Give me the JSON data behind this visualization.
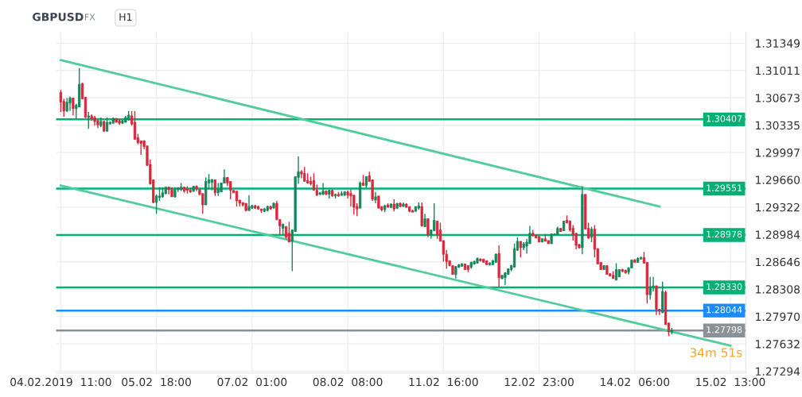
{
  "chart_data": {
    "type": "candlestick",
    "title": "GBPUSD",
    "annotations": [
      "FX",
      "H1",
      "34m 51s"
    ],
    "categories": [
      "04.02.2019  11:00",
      null,
      null,
      null,
      null,
      null,
      null,
      null,
      null,
      null,
      null,
      null,
      null,
      null,
      null,
      null,
      null,
      null,
      null,
      null,
      null,
      null,
      null,
      null,
      null,
      null,
      null,
      null,
      null,
      null,
      null,
      "05.02  18:00",
      null,
      null,
      null,
      null,
      null,
      null,
      null,
      null,
      null,
      null,
      null,
      null,
      null,
      null,
      null,
      null,
      null,
      null,
      null,
      null,
      null,
      null,
      null,
      null,
      null,
      null,
      null,
      null,
      null,
      null,
      "07.02  01:00",
      null,
      null,
      null,
      null,
      null,
      null,
      null,
      null,
      null,
      null,
      null,
      null,
      null,
      null,
      null,
      null,
      null,
      null,
      null,
      null,
      null,
      null,
      null,
      null,
      null,
      null,
      null,
      null,
      null,
      null,
      "08.02  08:00",
      null,
      null,
      null,
      null,
      null,
      null,
      null,
      null,
      null,
      null,
      null,
      null,
      null,
      null,
      null,
      null,
      null,
      null,
      null,
      null,
      null,
      null,
      null,
      null,
      null,
      null,
      null,
      null,
      null,
      null,
      "11.02  16:00",
      null,
      null,
      null,
      null,
      null,
      null,
      null,
      null,
      null,
      null,
      null,
      null,
      null,
      null,
      null,
      null,
      null,
      null,
      null,
      null,
      null,
      null,
      null,
      null,
      null,
      null,
      null,
      null,
      null,
      null,
      "12.02  23:00",
      null,
      null,
      null,
      null,
      null,
      null,
      null,
      null,
      null,
      null,
      null,
      null,
      null,
      null,
      null,
      null,
      null,
      null,
      null,
      null,
      null,
      null,
      null,
      null,
      null,
      null,
      null,
      null,
      null,
      null,
      "14.02  06:00",
      null,
      null,
      null,
      null,
      null,
      null,
      null,
      null,
      null,
      null,
      null,
      null,
      null,
      null,
      null,
      null,
      null,
      null,
      null,
      null,
      null,
      null,
      null,
      null,
      null,
      null,
      null,
      null,
      null,
      null,
      "15.02  13:00"
    ],
    "ohlc": [
      [
        1.3074,
        1.3077,
        1.305,
        1.3062
      ],
      [
        1.3063,
        1.3066,
        1.3044,
        1.3051
      ],
      [
        1.3051,
        1.3067,
        1.305,
        1.3062
      ],
      [
        1.3061,
        1.3069,
        1.3051,
        1.3067
      ],
      [
        1.3067,
        1.3067,
        1.3046,
        1.3054
      ],
      [
        1.3054,
        1.306,
        1.3041,
        1.3058
      ],
      [
        1.3056,
        1.3104,
        1.3056,
        1.3084
      ],
      [
        1.3085,
        1.3086,
        1.3066,
        1.3066
      ],
      [
        1.3068,
        1.3068,
        1.3043,
        1.3043
      ],
      [
        1.3043,
        1.305,
        1.3029,
        1.3045
      ],
      [
        1.3045,
        1.3047,
        1.3039,
        1.3042
      ],
      [
        1.3043,
        1.3045,
        1.3033,
        1.3038
      ],
      [
        1.3039,
        1.304,
        1.303,
        1.3034
      ],
      [
        1.3033,
        1.3043,
        1.3031,
        1.3038
      ],
      [
        1.3038,
        1.3039,
        1.3026,
        1.3026
      ],
      [
        1.3026,
        1.3043,
        1.3026,
        1.3037
      ],
      [
        1.3035,
        1.3038,
        1.3035,
        1.3037
      ],
      [
        1.3036,
        1.3043,
        1.3036,
        1.3042
      ],
      [
        1.3042,
        1.3042,
        1.3037,
        1.3037
      ],
      [
        1.3039,
        1.3041,
        1.3034,
        1.3036
      ],
      [
        1.3036,
        1.304,
        1.3035,
        1.3039
      ],
      [
        1.3037,
        1.3045,
        1.3037,
        1.3043
      ],
      [
        1.3041,
        1.3051,
        1.3039,
        1.3046
      ],
      [
        1.3045,
        1.3051,
        1.3033,
        1.3035
      ],
      [
        1.3037,
        1.3051,
        1.3016,
        1.3016
      ],
      [
        1.3018,
        1.3023,
        1.301,
        1.3012
      ],
      [
        1.3014,
        1.3014,
        1.2997,
        1.3011
      ],
      [
        1.3014,
        1.3015,
        1.3004,
        1.3007
      ],
      [
        1.3008,
        1.3008,
        1.2983,
        1.2984
      ],
      [
        1.2985,
        1.2991,
        1.296,
        1.2961
      ],
      [
        1.2966,
        1.2966,
        1.2937,
        1.2938
      ],
      [
        1.2938,
        1.2948,
        1.2924,
        1.2946
      ],
      [
        1.2944,
        1.2957,
        1.294,
        1.2946
      ],
      [
        1.2945,
        1.2957,
        1.2944,
        1.295
      ],
      [
        1.2949,
        1.2957,
        1.2948,
        1.2957
      ],
      [
        1.2957,
        1.2957,
        1.2948,
        1.2954
      ],
      [
        1.2954,
        1.2957,
        1.2945,
        1.2945
      ],
      [
        1.2945,
        1.2957,
        1.2944,
        1.2954
      ],
      [
        1.2954,
        1.2957,
        1.2951,
        1.2956
      ],
      [
        1.2954,
        1.2962,
        1.2952,
        1.2957
      ],
      [
        1.2957,
        1.2957,
        1.295,
        1.2952
      ],
      [
        1.2955,
        1.2958,
        1.2949,
        1.2953
      ],
      [
        1.2953,
        1.2956,
        1.295,
        1.2951
      ],
      [
        1.2952,
        1.2958,
        1.2951,
        1.2958
      ],
      [
        1.2958,
        1.2959,
        1.2952,
        1.2955
      ],
      [
        1.2954,
        1.2954,
        1.2947,
        1.2948
      ],
      [
        1.2949,
        1.2949,
        1.2924,
        1.2935
      ],
      [
        1.2935,
        1.2969,
        1.2935,
        1.2964
      ],
      [
        1.2962,
        1.2973,
        1.2954,
        1.2966
      ],
      [
        1.2963,
        1.2967,
        1.2953,
        1.2966
      ],
      [
        1.2966,
        1.2966,
        1.2946,
        1.295
      ],
      [
        1.295,
        1.2962,
        1.2946,
        1.2954
      ],
      [
        1.2951,
        1.2962,
        1.2951,
        1.2962
      ],
      [
        1.2962,
        1.2979,
        1.2962,
        1.2969
      ],
      [
        1.2969,
        1.2969,
        1.2958,
        1.2962
      ],
      [
        1.2964,
        1.2964,
        1.2942,
        1.2953
      ],
      [
        1.2953,
        1.2953,
        1.295,
        1.295
      ],
      [
        1.2952,
        1.2952,
        1.2933,
        1.294
      ],
      [
        1.2941,
        1.2941,
        1.2933,
        1.2937
      ],
      [
        1.2938,
        1.2938,
        1.2933,
        1.2935
      ],
      [
        1.2937,
        1.2937,
        1.2927,
        1.2928
      ],
      [
        1.2928,
        1.2947,
        1.2928,
        1.2933
      ],
      [
        1.2931,
        1.2935,
        1.293,
        1.2934
      ],
      [
        1.2934,
        1.2935,
        1.293,
        1.2931
      ],
      [
        1.2933,
        1.2934,
        1.2929,
        1.293
      ],
      [
        1.293,
        1.293,
        1.2925,
        1.2928
      ],
      [
        1.2927,
        1.2931,
        1.2926,
        1.293
      ],
      [
        1.2928,
        1.2934,
        1.2927,
        1.2933
      ],
      [
        1.2933,
        1.2934,
        1.2929,
        1.293
      ],
      [
        1.2931,
        1.2938,
        1.2931,
        1.2937
      ],
      [
        1.2937,
        1.294,
        1.2916,
        1.2917
      ],
      [
        1.2917,
        1.2917,
        1.2898,
        1.2909
      ],
      [
        1.2906,
        1.2912,
        1.2898,
        1.2911
      ],
      [
        1.2908,
        1.2909,
        1.2893,
        1.2895
      ],
      [
        1.29,
        1.2914,
        1.2889,
        1.2889
      ],
      [
        1.289,
        1.2904,
        1.2853,
        1.2904
      ],
      [
        1.2902,
        1.297,
        1.2902,
        1.297
      ],
      [
        1.2969,
        1.2995,
        1.2961,
        1.2976
      ],
      [
        1.2976,
        1.2978,
        1.2968,
        1.2973
      ],
      [
        1.2974,
        1.2982,
        1.2964,
        1.2964
      ],
      [
        1.2965,
        1.2974,
        1.2961,
        1.2962
      ],
      [
        1.2964,
        1.297,
        1.2959,
        1.2961
      ],
      [
        1.2965,
        1.2974,
        1.2953,
        1.2953
      ],
      [
        1.2953,
        1.296,
        1.2946,
        1.2947
      ],
      [
        1.2948,
        1.2951,
        1.2947,
        1.295
      ],
      [
        1.2948,
        1.2962,
        1.2947,
        1.2952
      ],
      [
        1.2952,
        1.2953,
        1.2947,
        1.2948
      ],
      [
        1.2948,
        1.2954,
        1.2943,
        1.2953
      ],
      [
        1.2953,
        1.2954,
        1.2945,
        1.2946
      ],
      [
        1.2946,
        1.2949,
        1.2943,
        1.2948
      ],
      [
        1.2948,
        1.2951,
        1.2945,
        1.2946
      ],
      [
        1.2947,
        1.2952,
        1.2946,
        1.2949
      ],
      [
        1.2947,
        1.2952,
        1.2946,
        1.2951
      ],
      [
        1.2951,
        1.2953,
        1.2943,
        1.2947
      ],
      [
        1.2949,
        1.2954,
        1.2933,
        1.2946
      ],
      [
        1.2947,
        1.2947,
        1.2923,
        1.2932
      ],
      [
        1.2933,
        1.2937,
        1.2921,
        1.293
      ],
      [
        1.2931,
        1.2964,
        1.2931,
        1.2962
      ],
      [
        1.2962,
        1.2972,
        1.2959,
        1.2959
      ],
      [
        1.2959,
        1.297,
        1.2956,
        1.297
      ],
      [
        1.2971,
        1.2976,
        1.2964,
        1.2964
      ],
      [
        1.2966,
        1.2966,
        1.294,
        1.2942
      ],
      [
        1.2941,
        1.2951,
        1.2937,
        1.2945
      ],
      [
        1.2946,
        1.2946,
        1.2931,
        1.2931
      ],
      [
        1.2933,
        1.2933,
        1.2927,
        1.2929
      ],
      [
        1.2929,
        1.2935,
        1.2926,
        1.2934
      ],
      [
        1.2935,
        1.2937,
        1.2932,
        1.2932
      ],
      [
        1.2932,
        1.2937,
        1.2931,
        1.2936
      ],
      [
        1.2936,
        1.2942,
        1.2927,
        1.293
      ],
      [
        1.2931,
        1.2937,
        1.293,
        1.2937
      ],
      [
        1.2937,
        1.2938,
        1.2932,
        1.2933
      ],
      [
        1.2933,
        1.2938,
        1.2933,
        1.2936
      ],
      [
        1.2936,
        1.2937,
        1.2932,
        1.2932
      ],
      [
        1.2933,
        1.2933,
        1.2926,
        1.2927
      ],
      [
        1.2928,
        1.2929,
        1.2926,
        1.2926
      ],
      [
        1.2927,
        1.2933,
        1.2927,
        1.2933
      ],
      [
        1.2931,
        1.2938,
        1.2929,
        1.2934
      ],
      [
        1.2933,
        1.2938,
        1.2908,
        1.2909
      ],
      [
        1.2908,
        1.2924,
        1.2908,
        1.2918
      ],
      [
        1.2918,
        1.2918,
        1.2895,
        1.2898
      ],
      [
        1.2898,
        1.2904,
        1.2893,
        1.2904
      ],
      [
        1.2903,
        1.2937,
        1.2903,
        1.2916
      ],
      [
        1.2915,
        1.2915,
        1.2893,
        1.2898
      ],
      [
        1.2904,
        1.2913,
        1.289,
        1.289
      ],
      [
        1.2891,
        1.2891,
        1.2865,
        1.2874
      ],
      [
        1.2874,
        1.2879,
        1.2856,
        1.2865
      ],
      [
        1.2866,
        1.2866,
        1.2859,
        1.286
      ],
      [
        1.286,
        1.286,
        1.2849,
        1.2849
      ],
      [
        1.2849,
        1.2859,
        1.2844,
        1.2859
      ],
      [
        1.2858,
        1.2862,
        1.2857,
        1.2861
      ],
      [
        1.2859,
        1.2863,
        1.2859,
        1.2862
      ],
      [
        1.2862,
        1.2862,
        1.2855,
        1.2855
      ],
      [
        1.286,
        1.286,
        1.2852,
        1.2855
      ],
      [
        1.2858,
        1.2865,
        1.2856,
        1.2864
      ],
      [
        1.2862,
        1.2866,
        1.2861,
        1.2865
      ],
      [
        1.2863,
        1.287,
        1.2863,
        1.2869
      ],
      [
        1.2868,
        1.2869,
        1.2865,
        1.2866
      ],
      [
        1.2868,
        1.2868,
        1.2864,
        1.2864
      ],
      [
        1.2866,
        1.2866,
        1.2861,
        1.2861
      ],
      [
        1.2861,
        1.2864,
        1.286,
        1.2863
      ],
      [
        1.2861,
        1.2867,
        1.2861,
        1.2866
      ],
      [
        1.2864,
        1.2875,
        1.2864,
        1.2874
      ],
      [
        1.2875,
        1.2885,
        1.2834,
        1.2845
      ],
      [
        1.2844,
        1.2848,
        1.2843,
        1.2848
      ],
      [
        1.2845,
        1.2852,
        1.2836,
        1.2851
      ],
      [
        1.2849,
        1.2856,
        1.2849,
        1.2856
      ],
      [
        1.2855,
        1.2861,
        1.2853,
        1.286
      ],
      [
        1.2858,
        1.2887,
        1.2858,
        1.2881
      ],
      [
        1.2879,
        1.2895,
        1.2878,
        1.289
      ],
      [
        1.289,
        1.289,
        1.287,
        1.2882
      ],
      [
        1.2882,
        1.2889,
        1.2879,
        1.2887
      ],
      [
        1.2884,
        1.2893,
        1.2875,
        1.2889
      ],
      [
        1.2887,
        1.2909,
        1.2887,
        1.29
      ],
      [
        1.29,
        1.2904,
        1.2896,
        1.2897
      ],
      [
        1.2897,
        1.2897,
        1.2894,
        1.2894
      ],
      [
        1.2896,
        1.2896,
        1.2889,
        1.2889
      ],
      [
        1.2889,
        1.2894,
        1.2889,
        1.2893
      ],
      [
        1.2893,
        1.2899,
        1.289,
        1.289
      ],
      [
        1.2891,
        1.2891,
        1.2887,
        1.2887
      ],
      [
        1.2887,
        1.2899,
        1.2887,
        1.2899
      ],
      [
        1.2898,
        1.29,
        1.2898,
        1.2899
      ],
      [
        1.2898,
        1.2908,
        1.2898,
        1.2906
      ],
      [
        1.2906,
        1.2906,
        1.2902,
        1.2902
      ],
      [
        1.2903,
        1.2915,
        1.2903,
        1.2915
      ],
      [
        1.2916,
        1.2922,
        1.2912,
        1.2913
      ],
      [
        1.2915,
        1.2916,
        1.2902,
        1.2904
      ],
      [
        1.2906,
        1.291,
        1.2891,
        1.2898
      ],
      [
        1.29,
        1.29,
        1.288,
        1.2885
      ],
      [
        1.2886,
        1.2887,
        1.2881,
        1.2882
      ],
      [
        1.2882,
        1.2958,
        1.2874,
        1.2948
      ],
      [
        1.2948,
        1.2948,
        1.2905,
        1.2905
      ],
      [
        1.2906,
        1.2913,
        1.2893,
        1.2894
      ],
      [
        1.2895,
        1.2908,
        1.2889,
        1.2905
      ],
      [
        1.2905,
        1.291,
        1.287,
        1.288
      ],
      [
        1.2881,
        1.2881,
        1.2862,
        1.2862
      ],
      [
        1.2864,
        1.2864,
        1.2855,
        1.2855
      ],
      [
        1.2855,
        1.286,
        1.2855,
        1.286
      ],
      [
        1.286,
        1.286,
        1.2849,
        1.2849
      ],
      [
        1.285,
        1.285,
        1.2847,
        1.2847
      ],
      [
        1.2848,
        1.2853,
        1.2844,
        1.2844
      ],
      [
        1.2842,
        1.2863,
        1.2842,
        1.2855
      ],
      [
        1.2846,
        1.2855,
        1.2846,
        1.2855
      ],
      [
        1.2855,
        1.2856,
        1.2852,
        1.2853
      ],
      [
        1.2854,
        1.2855,
        1.285,
        1.2851
      ],
      [
        1.2852,
        1.2858,
        1.2849,
        1.2857
      ],
      [
        1.2857,
        1.2867,
        1.2857,
        1.2867
      ],
      [
        1.2867,
        1.2868,
        1.2864,
        1.2864
      ],
      [
        1.2864,
        1.287,
        1.2864,
        1.2869
      ],
      [
        1.2868,
        1.2871,
        1.2868,
        1.287
      ],
      [
        1.287,
        1.2877,
        1.2863,
        1.2863
      ],
      [
        1.2864,
        1.2864,
        1.2813,
        1.2824
      ],
      [
        1.2824,
        1.2846,
        1.2818,
        1.2834
      ],
      [
        1.2834,
        1.2846,
        1.2828,
        1.2835
      ],
      [
        1.2835,
        1.2835,
        1.2799,
        1.2806
      ],
      [
        1.2806,
        1.2806,
        1.2799,
        1.2804
      ],
      [
        1.2802,
        1.284,
        1.2801,
        1.2828
      ],
      [
        1.2827,
        1.2829,
        1.2787,
        1.2787
      ],
      [
        1.2789,
        1.2789,
        1.2773,
        1.2778
      ],
      [
        1.2778,
        1.2783,
        1.2775,
        1.278
      ],
      null,
      null,
      null,
      null,
      null,
      null,
      null,
      null,
      null,
      null,
      null,
      null,
      null,
      null,
      null,
      null,
      null,
      null,
      null
    ],
    "series": [
      {
        "type": "line",
        "color": "#52cc9c",
        "values": [
          1.3114,
          null,
          null,
          null,
          null,
          null,
          null,
          null,
          null,
          null,
          null,
          null,
          null,
          null,
          null,
          null,
          null,
          null,
          null,
          null,
          null,
          null,
          null,
          null,
          null,
          null,
          null,
          null,
          null,
          null,
          null,
          null,
          null,
          null,
          null,
          null,
          null,
          null,
          null,
          null,
          null,
          null,
          null,
          null,
          null,
          null,
          null,
          null,
          null,
          null,
          null,
          null,
          null,
          null,
          null,
          null,
          null,
          null,
          null,
          null,
          null,
          null,
          null,
          null,
          null,
          null,
          null,
          null,
          null,
          null,
          null,
          null,
          null,
          null,
          null,
          null,
          null,
          null,
          null,
          null,
          null,
          null,
          null,
          null,
          null,
          null,
          null,
          null,
          null,
          null,
          null,
          null,
          null,
          null,
          null,
          null,
          null,
          null,
          null,
          null,
          null,
          null,
          null,
          null,
          null,
          null,
          null,
          null,
          null,
          null,
          null,
          null,
          null,
          null,
          null,
          null,
          null,
          null,
          null,
          null,
          null,
          null,
          null,
          null,
          null,
          null,
          null,
          null,
          null,
          null,
          null,
          null,
          null,
          null,
          null,
          null,
          null,
          null,
          null,
          null,
          null,
          null,
          null,
          null,
          null,
          null,
          null,
          null,
          null,
          null,
          null,
          null,
          null,
          null,
          null,
          null,
          null,
          null,
          null,
          null,
          null,
          null,
          null,
          null,
          null,
          null,
          null,
          null,
          null,
          null,
          null,
          null,
          null,
          null,
          null,
          null,
          null,
          null,
          null,
          null,
          null,
          null,
          null,
          null,
          null,
          null,
          null,
          null,
          null,
          null,
          null,
          null,
          null,
          null,
          1.2933,
          null,
          null,
          null,
          null,
          null,
          null,
          null,
          null,
          null,
          null,
          null,
          null,
          null,
          null,
          null,
          null,
          null,
          null,
          null,
          null,
          null,
          null,
          null
        ]
      },
      {
        "type": "line",
        "color": "#52cc9c",
        "values": [
          1.2959,
          null,
          null,
          null,
          null,
          null,
          null,
          null,
          null,
          null,
          null,
          null,
          null,
          null,
          null,
          null,
          null,
          null,
          null,
          null,
          null,
          null,
          null,
          null,
          null,
          null,
          null,
          null,
          null,
          null,
          null,
          null,
          null,
          null,
          null,
          null,
          null,
          null,
          null,
          null,
          null,
          null,
          null,
          null,
          null,
          null,
          null,
          null,
          null,
          null,
          null,
          null,
          null,
          null,
          null,
          null,
          null,
          null,
          null,
          null,
          null,
          null,
          null,
          null,
          null,
          null,
          null,
          null,
          null,
          null,
          null,
          null,
          null,
          null,
          null,
          null,
          null,
          null,
          null,
          null,
          null,
          null,
          null,
          null,
          null,
          null,
          null,
          null,
          null,
          null,
          null,
          null,
          null,
          null,
          null,
          null,
          null,
          null,
          null,
          null,
          null,
          null,
          null,
          null,
          null,
          null,
          null,
          null,
          null,
          null,
          null,
          null,
          null,
          null,
          null,
          null,
          null,
          null,
          null,
          null,
          null,
          null,
          null,
          null,
          null,
          null,
          null,
          null,
          null,
          null,
          null,
          null,
          null,
          null,
          null,
          null,
          null,
          null,
          null,
          null,
          null,
          null,
          null,
          null,
          null,
          null,
          null,
          null,
          null,
          null,
          null,
          null,
          null,
          null,
          null,
          null,
          null,
          null,
          null,
          null,
          null,
          null,
          null,
          null,
          null,
          null,
          null,
          null,
          null,
          null,
          null,
          null,
          null,
          null,
          null,
          null,
          null,
          null,
          null,
          null,
          null,
          null,
          null,
          null,
          null,
          null,
          null,
          null,
          null,
          null,
          null,
          null,
          null,
          null,
          null,
          null,
          null,
          null,
          null,
          null,
          null,
          null,
          null,
          null,
          null,
          null,
          null,
          null,
          null,
          null,
          null,
          null,
          null,
          null,
          null,
          null,
          null,
          1.2761
        ]
      }
    ],
    "ref_lines": [
      {
        "axis": "y",
        "value": 1.30407,
        "label": "1.30407",
        "color": "#00b074"
      },
      {
        "axis": "y",
        "value": 1.29551,
        "label": "1.29551",
        "color": "#00b074"
      },
      {
        "axis": "y",
        "value": 1.28978,
        "label": "1.28978",
        "color": "#00b074"
      },
      {
        "axis": "y",
        "value": 1.2833,
        "label": "1.28330",
        "color": "#00b074"
      },
      {
        "axis": "y",
        "value": 1.28044,
        "label": "1.28044",
        "color": "#1a8cff"
      },
      {
        "axis": "y",
        "value": 1.27798,
        "label": "1.27798",
        "color": "#8a9196"
      }
    ],
    "ylim": [
      1.2727,
      1.3149
    ],
    "yticks": [
      1.27294,
      1.27632,
      {
        "value": 1.2797,
        "label": "1.27970"
      },
      1.28308,
      1.28646,
      1.28984,
      1.29322,
      {
        "value": 1.2966,
        "label": "1.29660"
      },
      1.29997,
      1.30335,
      1.30673,
      1.31011,
      1.31349
    ],
    "grid": true,
    "legend": false
  }
}
